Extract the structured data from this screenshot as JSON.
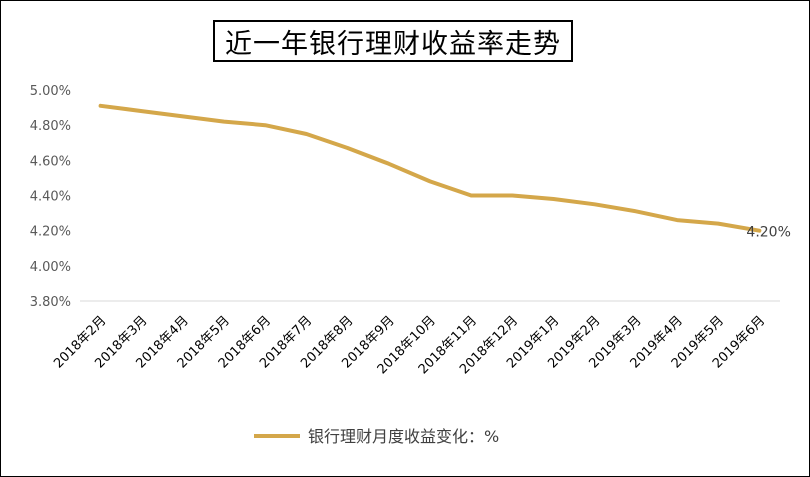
{
  "chart_data": {
    "type": "line",
    "title": "近一年银行理财收益率走势",
    "categories": [
      "2018年2月",
      "2018年3月",
      "2018年4月",
      "2018年5月",
      "2018年6月",
      "2018年7月",
      "2018年8月",
      "2018年9月",
      "2018年10月",
      "2018年11月",
      "2018年12月",
      "2019年1月",
      "2019年2月",
      "2019年3月",
      "2019年4月",
      "2019年5月",
      "2019年6月"
    ],
    "series": [
      {
        "name": "银行理财月度收益变化：%",
        "color": "#D4A74A",
        "values": [
          4.91,
          4.88,
          4.85,
          4.82,
          4.8,
          4.75,
          4.67,
          4.58,
          4.48,
          4.4,
          4.4,
          4.38,
          4.35,
          4.31,
          4.26,
          4.24,
          4.2
        ]
      }
    ],
    "ylim": [
      3.8,
      5.0
    ],
    "yticks": [
      "5.00%",
      "4.80%",
      "4.60%",
      "4.40%",
      "4.20%",
      "4.00%",
      "3.80%"
    ],
    "ytick_values": [
      5.0,
      4.8,
      4.6,
      4.4,
      4.2,
      4.0,
      3.8
    ],
    "data_labels": [
      {
        "category": "2019年6月",
        "text": "4.20%"
      }
    ],
    "grid": false,
    "legend": "bottom"
  }
}
